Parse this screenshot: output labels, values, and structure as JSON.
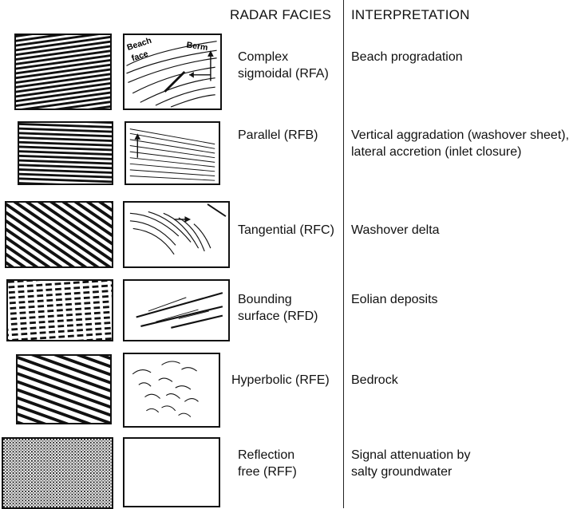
{
  "headers": {
    "facies": "RADAR FACIES",
    "interpretation": "INTERPRETATION"
  },
  "rows": [
    {
      "facies": [
        "Complex",
        "sigmoidal (RFA)"
      ],
      "interpretation": [
        "Beach progradation"
      ],
      "sketch_labels": [
        "Beach",
        "face",
        "Berm"
      ]
    },
    {
      "facies": [
        "Parallel (RFB)"
      ],
      "interpretation": [
        "Vertical aggradation (washover sheet),",
        "lateral accretion (inlet closure)"
      ]
    },
    {
      "facies": [
        "Tangential (RFC)"
      ],
      "interpretation": [
        "Washover delta"
      ]
    },
    {
      "facies": [
        "Bounding",
        "surface (RFD)"
      ],
      "interpretation": [
        "Eolian deposits"
      ]
    },
    {
      "facies": [
        "Hyperbolic (RFE)"
      ],
      "interpretation": [
        "Bedrock"
      ]
    },
    {
      "facies": [
        "Reflection",
        "free (RFF)"
      ],
      "interpretation": [
        "Signal attenuation by",
        "salty groundwater"
      ]
    }
  ]
}
